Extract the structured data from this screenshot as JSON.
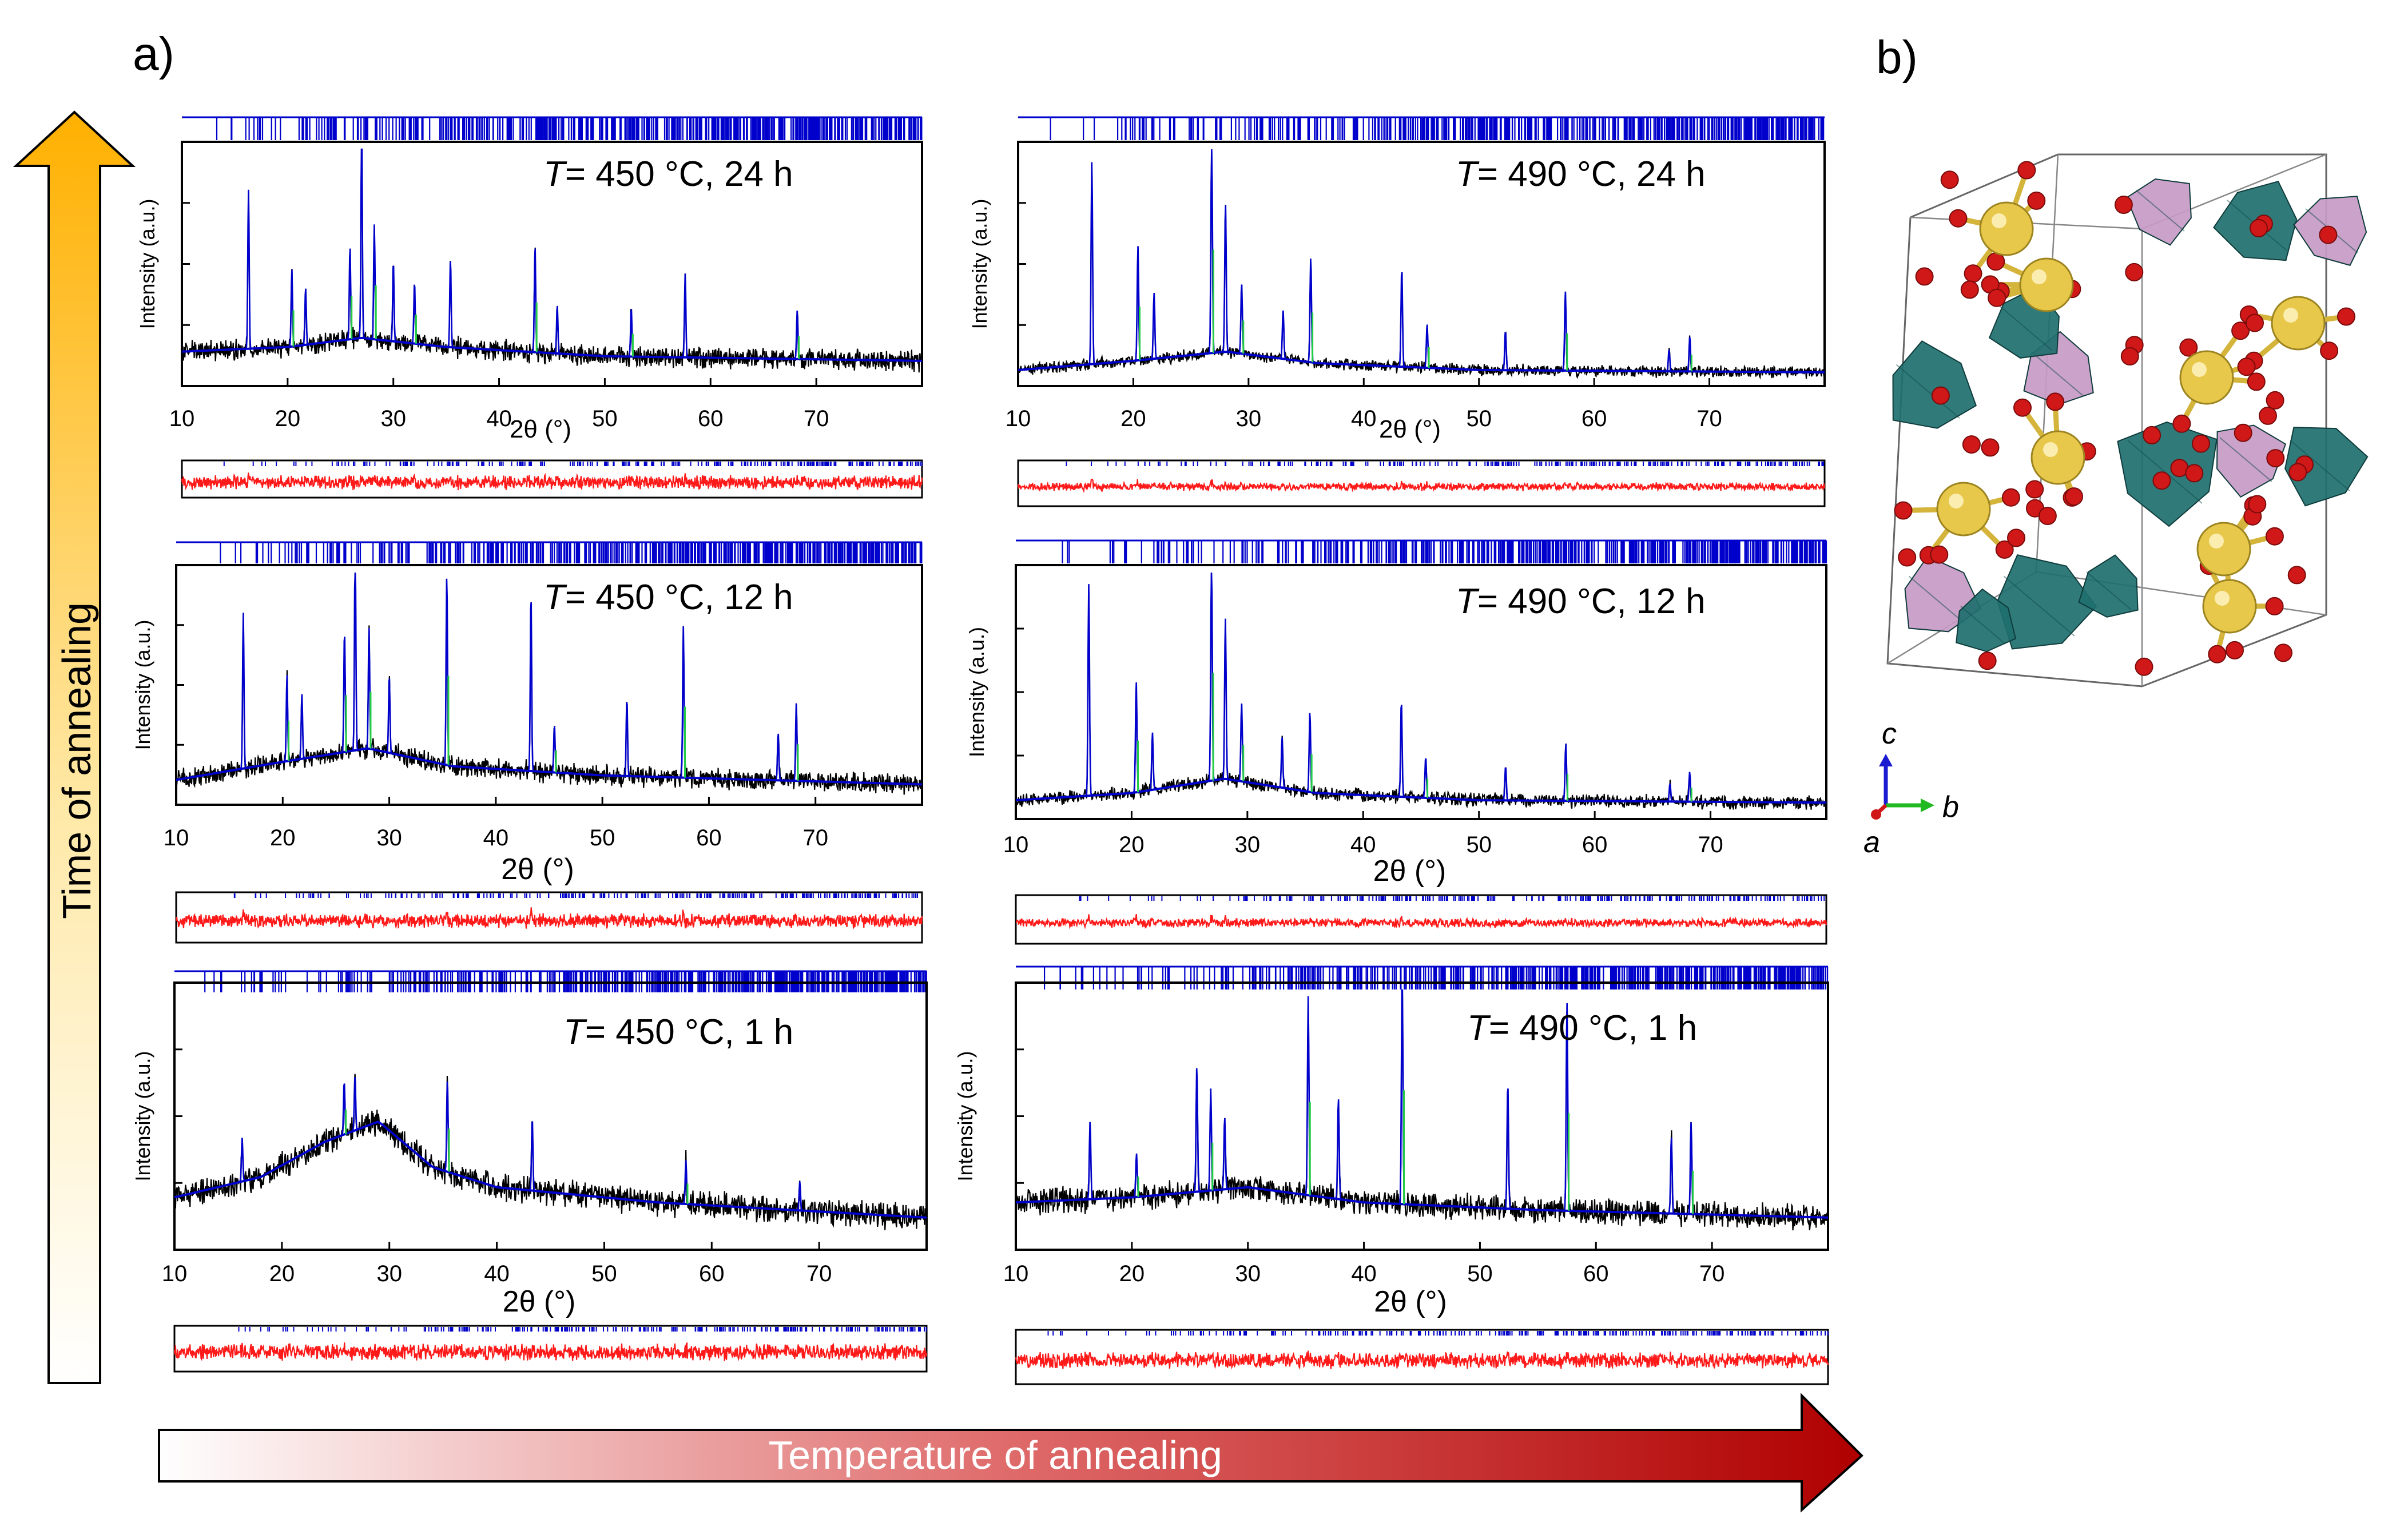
{
  "figure": {
    "panel_a_label": "a)",
    "panel_b_label": "b)",
    "time_axis_label": "Time of annealing",
    "temperature_axis_label": "Temperature of annealing",
    "colors": {
      "observed": "#000000",
      "calculated": "#0000cc",
      "phase2": "#22cc44",
      "difference": "#ff1a1a",
      "time_arrow_top": "#ffb000",
      "temp_arrow_end": "#b00000",
      "atom_yellow": "#e8c84a",
      "atom_red": "#d01818",
      "polyhedron_teal": "#1f6f6f",
      "polyhedron_pink": "#c79ac4"
    }
  },
  "structure": {
    "axis_c": "c",
    "axis_b": "b",
    "axis_a": "a"
  },
  "chart_data": [
    {
      "type": "line",
      "id": "T450_24h",
      "annotation_T": "T",
      "annotation": "= 450 °C, 24 h",
      "xlabel": "2θ (°)",
      "ylabel": "Intensity (a.u.)",
      "xlim": [
        10,
        80
      ],
      "ylim": [
        0,
        1
      ],
      "x_ticks": [
        "10",
        "20",
        "30",
        "40",
        "50",
        "60",
        "70"
      ],
      "background": [
        [
          10,
          0.12
        ],
        [
          20,
          0.14
        ],
        [
          27,
          0.18
        ],
        [
          35,
          0.14
        ],
        [
          50,
          0.1
        ],
        [
          80,
          0.08
        ]
      ],
      "noise": 0.035,
      "peaks": [
        [
          16.3,
          0.72
        ],
        [
          20.4,
          0.35
        ],
        [
          21.7,
          0.26
        ],
        [
          25.9,
          0.42
        ],
        [
          27.0,
          1.0
        ],
        [
          28.2,
          0.52
        ],
        [
          30.0,
          0.36
        ],
        [
          32.0,
          0.28
        ],
        [
          35.4,
          0.4
        ],
        [
          43.4,
          0.48
        ],
        [
          45.5,
          0.22
        ],
        [
          52.5,
          0.22
        ],
        [
          57.6,
          0.38
        ],
        [
          68.2,
          0.22
        ]
      ]
    },
    {
      "type": "line",
      "id": "T490_24h",
      "annotation_T": "T",
      "annotation": "= 490 °C, 24 h",
      "xlabel": "2θ (°)",
      "ylabel": "Intensity (a.u.)",
      "xlim": [
        10,
        80
      ],
      "ylim": [
        0,
        1
      ],
      "x_ticks": [
        "10",
        "20",
        "30",
        "40",
        "50",
        "60",
        "70"
      ],
      "background": [
        [
          10,
          0.04
        ],
        [
          20,
          0.08
        ],
        [
          28,
          0.12
        ],
        [
          36,
          0.07
        ],
        [
          50,
          0.04
        ],
        [
          80,
          0.03
        ]
      ],
      "noise": 0.02,
      "peaks": [
        [
          16.4,
          0.92
        ],
        [
          20.4,
          0.52
        ],
        [
          21.8,
          0.3
        ],
        [
          26.8,
          1.0
        ],
        [
          28.0,
          0.68
        ],
        [
          29.4,
          0.32
        ],
        [
          33.0,
          0.22
        ],
        [
          35.4,
          0.48
        ],
        [
          43.3,
          0.45
        ],
        [
          45.5,
          0.2
        ],
        [
          52.3,
          0.18
        ],
        [
          57.5,
          0.36
        ],
        [
          66.5,
          0.1
        ],
        [
          68.3,
          0.16
        ]
      ]
    },
    {
      "type": "line",
      "id": "T450_12h",
      "annotation_T": "T",
      "annotation": "= 450 °C, 12 h",
      "xlabel": "2θ (°)",
      "ylabel": "Intensity (a.u.)",
      "xlim": [
        10,
        80
      ],
      "ylim": [
        0,
        1
      ],
      "x_ticks": [
        "10",
        "20",
        "30",
        "40",
        "50",
        "60",
        "70"
      ],
      "background": [
        [
          10,
          0.08
        ],
        [
          20,
          0.16
        ],
        [
          28,
          0.22
        ],
        [
          36,
          0.14
        ],
        [
          50,
          0.1
        ],
        [
          80,
          0.06
        ]
      ],
      "noise": 0.035,
      "peaks": [
        [
          16.3,
          0.72
        ],
        [
          20.4,
          0.4
        ],
        [
          21.8,
          0.3
        ],
        [
          25.8,
          0.56
        ],
        [
          26.8,
          0.98
        ],
        [
          28.1,
          0.56
        ],
        [
          30.0,
          0.36
        ],
        [
          35.4,
          0.88
        ],
        [
          43.3,
          0.82
        ],
        [
          45.5,
          0.22
        ],
        [
          52.3,
          0.36
        ],
        [
          57.6,
          0.7
        ],
        [
          66.5,
          0.22
        ],
        [
          68.2,
          0.36
        ]
      ]
    },
    {
      "type": "line",
      "id": "T490_12h",
      "annotation_T": "T",
      "annotation": "= 490 °C, 12 h",
      "xlabel": "2θ (°)",
      "ylabel": "Intensity (a.u.)",
      "xlim": [
        10,
        80
      ],
      "ylim": [
        0,
        1
      ],
      "x_ticks": [
        "10",
        "20",
        "30",
        "40",
        "50",
        "60",
        "70"
      ],
      "background": [
        [
          10,
          0.05
        ],
        [
          20,
          0.08
        ],
        [
          28,
          0.14
        ],
        [
          36,
          0.08
        ],
        [
          50,
          0.05
        ],
        [
          80,
          0.04
        ]
      ],
      "noise": 0.022,
      "peaks": [
        [
          16.3,
          0.92
        ],
        [
          20.4,
          0.48
        ],
        [
          21.8,
          0.25
        ],
        [
          26.9,
          1.0
        ],
        [
          28.1,
          0.7
        ],
        [
          29.5,
          0.34
        ],
        [
          33.0,
          0.22
        ],
        [
          35.4,
          0.35
        ],
        [
          43.3,
          0.42
        ],
        [
          45.4,
          0.18
        ],
        [
          52.3,
          0.15
        ],
        [
          57.5,
          0.25
        ],
        [
          66.5,
          0.08
        ],
        [
          68.2,
          0.13
        ]
      ]
    },
    {
      "type": "line",
      "id": "T450_1h",
      "annotation_T": "T",
      "annotation": "= 450 °C, 1 h",
      "xlabel": "2θ (°)",
      "ylabel": "Intensity (a.u.)",
      "xlim": [
        10,
        80
      ],
      "ylim": [
        0,
        1
      ],
      "x_ticks": [
        "10",
        "20",
        "30",
        "40",
        "50",
        "60",
        "70"
      ],
      "background": [
        [
          10,
          0.18
        ],
        [
          18,
          0.26
        ],
        [
          24,
          0.4
        ],
        [
          29,
          0.48
        ],
        [
          34,
          0.3
        ],
        [
          40,
          0.22
        ],
        [
          55,
          0.16
        ],
        [
          80,
          0.1
        ]
      ],
      "noise": 0.04,
      "peaks": [
        [
          16.3,
          0.18
        ],
        [
          25.8,
          0.22
        ],
        [
          26.8,
          0.22
        ],
        [
          35.4,
          0.38
        ],
        [
          43.3,
          0.3
        ],
        [
          57.6,
          0.18
        ],
        [
          68.2,
          0.12
        ]
      ]
    },
    {
      "type": "line",
      "id": "T490_1h",
      "annotation_T": "T",
      "annotation": "= 490 °C, 1 h",
      "xlabel": "2θ (°)",
      "ylabel": "Intensity (a.u.)",
      "xlim": [
        10,
        80
      ],
      "ylim": [
        0,
        1
      ],
      "x_ticks": [
        "10",
        "20",
        "30",
        "40",
        "50",
        "60",
        "70"
      ],
      "background": [
        [
          10,
          0.16
        ],
        [
          20,
          0.18
        ],
        [
          30,
          0.22
        ],
        [
          40,
          0.16
        ],
        [
          55,
          0.13
        ],
        [
          80,
          0.1
        ]
      ],
      "noise": 0.04,
      "peaks": [
        [
          16.4,
          0.32
        ],
        [
          20.4,
          0.18
        ],
        [
          25.6,
          0.52
        ],
        [
          26.8,
          0.42
        ],
        [
          28.0,
          0.3
        ],
        [
          35.2,
          0.82
        ],
        [
          37.8,
          0.42
        ],
        [
          43.3,
          1.0
        ],
        [
          52.4,
          0.52
        ],
        [
          57.5,
          0.86
        ],
        [
          66.5,
          0.32
        ],
        [
          68.2,
          0.38
        ]
      ]
    }
  ]
}
